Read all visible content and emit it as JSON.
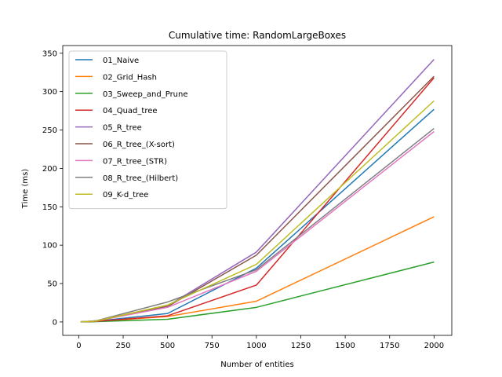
{
  "chart_data": {
    "type": "line",
    "title": "Cumulative time: RandomLargeBoxes",
    "xlabel": "Number of entities",
    "ylabel": "Time (ms)",
    "xlim": [
      -90,
      2100
    ],
    "ylim": [
      -17.5,
      360
    ],
    "xticks": [
      0,
      250,
      500,
      750,
      1000,
      1250,
      1500,
      1750,
      2000
    ],
    "yticks": [
      0,
      50,
      100,
      150,
      200,
      250,
      300,
      350
    ],
    "grid": false,
    "legend_position": "top-left",
    "x": [
      10,
      50,
      100,
      500,
      1000,
      2000
    ],
    "series": [
      {
        "name": "01_Naive",
        "color": "#1f77b4",
        "values": [
          0.1,
          0.4,
          1.0,
          11.0,
          70.0,
          277.0
        ]
      },
      {
        "name": "02_Grid_Hash",
        "color": "#ff7f0e",
        "values": [
          0.1,
          0.3,
          0.6,
          7.0,
          27.0,
          137.0
        ]
      },
      {
        "name": "03_Sweep_and_Prune",
        "color": "#2ca02c",
        "values": [
          0.05,
          0.2,
          0.4,
          3.5,
          19.0,
          78.0
        ]
      },
      {
        "name": "04_Quad_tree",
        "color": "#d62728",
        "values": [
          0.1,
          0.3,
          0.8,
          8.0,
          48.0,
          318.0
        ]
      },
      {
        "name": "05_R_tree",
        "color": "#9467bd",
        "values": [
          0.2,
          0.7,
          1.5,
          21.0,
          91.0,
          342.0
        ]
      },
      {
        "name": "06_R_tree_(X-sort)",
        "color": "#8c564b",
        "values": [
          0.2,
          0.6,
          1.4,
          20.0,
          87.0,
          320.0
        ]
      },
      {
        "name": "07_R_tree_(STR)",
        "color": "#e377c2",
        "values": [
          0.2,
          0.6,
          1.3,
          19.0,
          66.0,
          248.0
        ]
      },
      {
        "name": "08_R_tree_(Hilbert)",
        "color": "#7f7f7f",
        "values": [
          0.2,
          0.7,
          1.6,
          26.0,
          68.0,
          252.0
        ]
      },
      {
        "name": "09_K-d_tree",
        "color": "#bcbd22",
        "values": [
          0.2,
          0.5,
          1.2,
          22.0,
          75.0,
          288.0
        ]
      }
    ]
  }
}
